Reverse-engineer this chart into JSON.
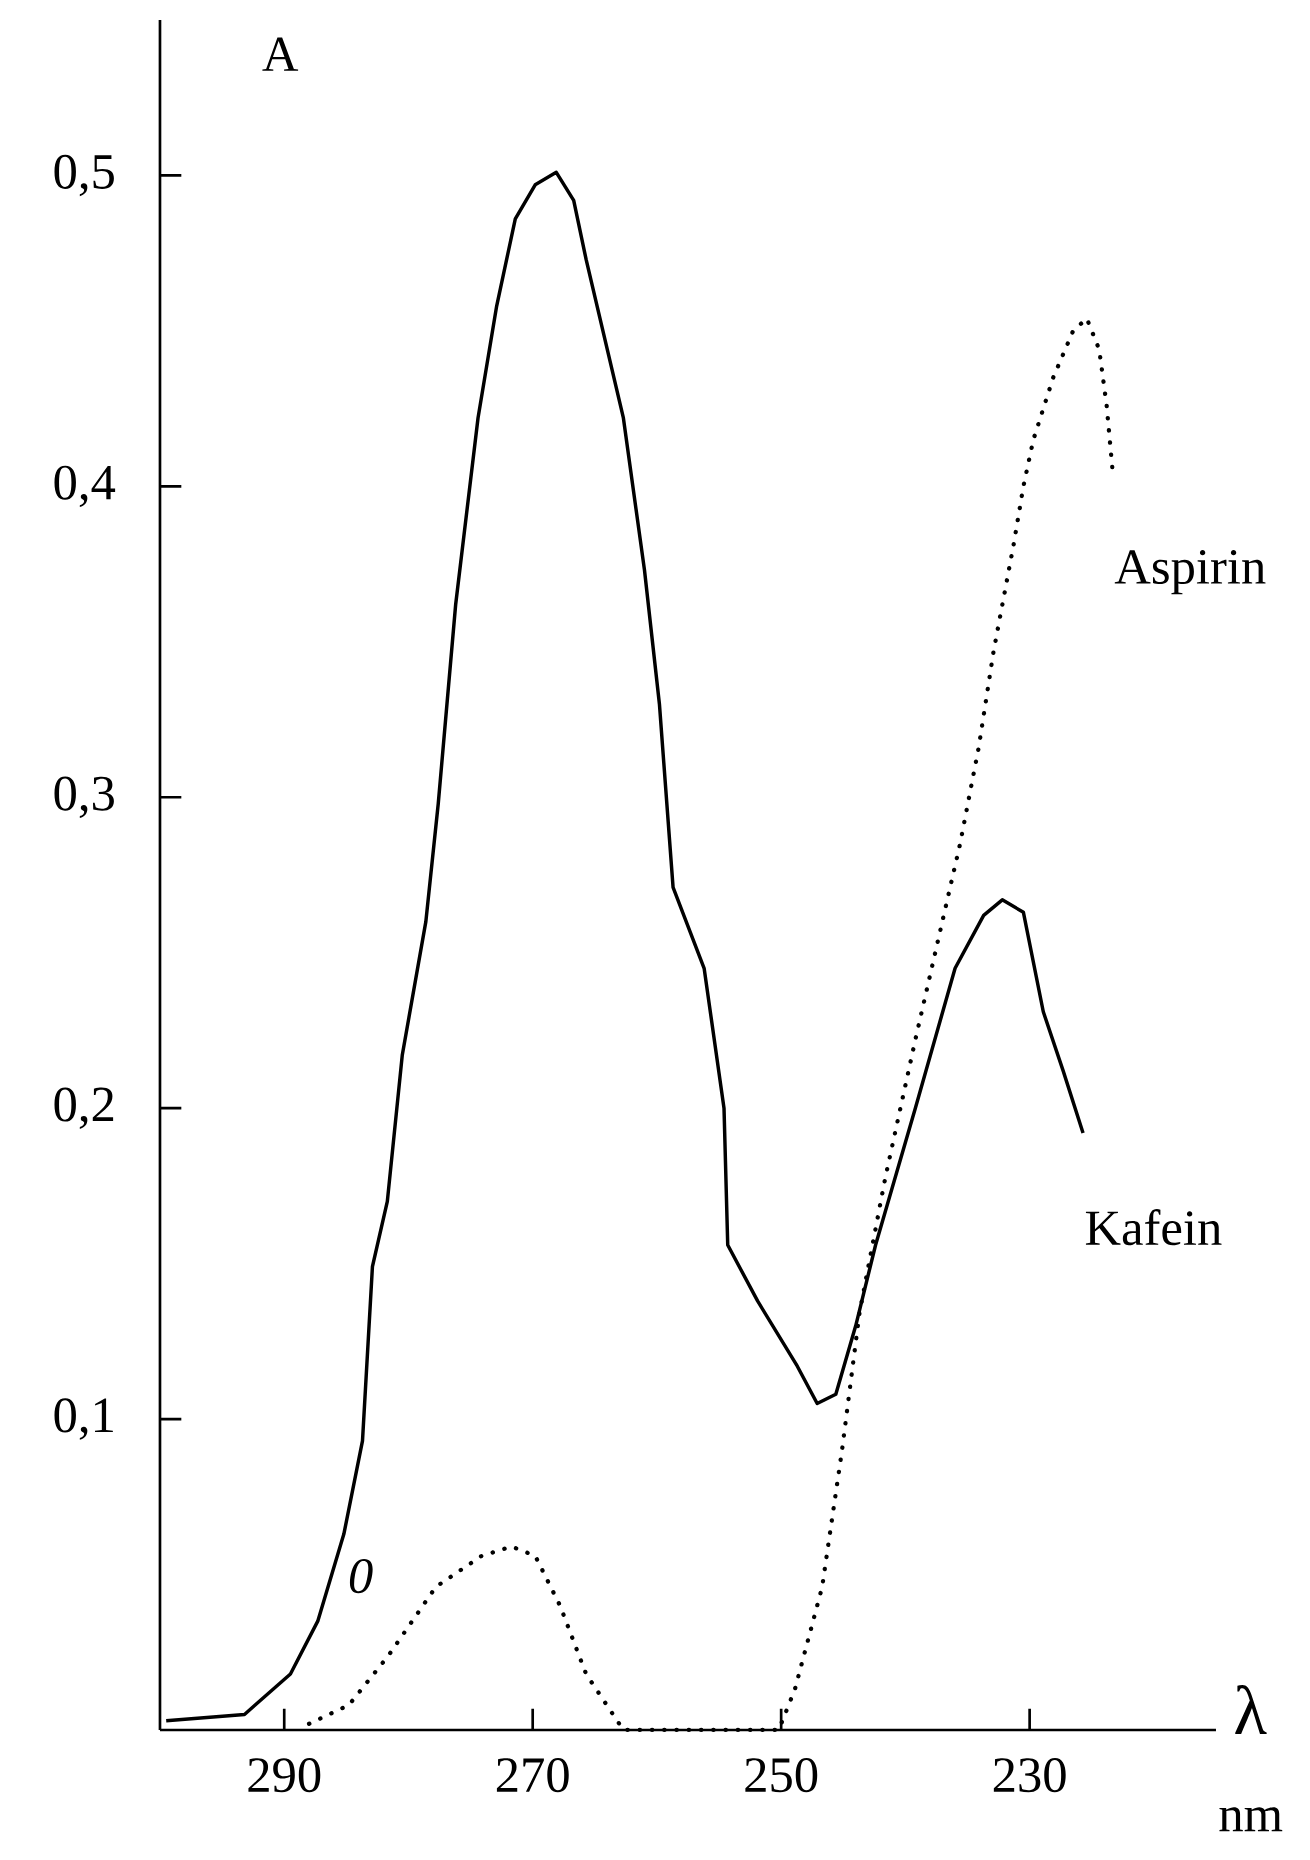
{
  "chart_data": {
    "type": "line",
    "xlabel": "λ",
    "ylabel": "A",
    "annotations": [
      "0",
      "nm"
    ],
    "xlim": [
      300,
      215
    ],
    "ylim": [
      0,
      0.55
    ],
    "xticks": [
      290,
      270,
      250,
      230
    ],
    "yticks": [
      {
        "value": 0.1,
        "label": "0,1"
      },
      {
        "value": 0.2,
        "label": "0,2"
      },
      {
        "value": 0.3,
        "label": "0,3"
      },
      {
        "value": 0.4,
        "label": "0,4"
      },
      {
        "value": 0.5,
        "label": "0,5"
      }
    ],
    "grid": false,
    "legend": false,
    "marker": "none",
    "series": [
      {
        "name": "Kafein",
        "color": "#000000",
        "line_style": "solid",
        "x": [
          299.5,
          293.2,
          289.5,
          287.3,
          285.2,
          283.7,
          282.9,
          281.7,
          280.5,
          278.6,
          277.6,
          276.2,
          274.4,
          272.9,
          271.4,
          269.8,
          268.1,
          266.7,
          265.7,
          262.7,
          261,
          259.8,
          258.7,
          256.2,
          254.6,
          254.3,
          251.9,
          248.7,
          247.1,
          245.6,
          244,
          242.4,
          239.2,
          236,
          233.7,
          232.2,
          230.5,
          228.9,
          227.3,
          225.7
        ],
        "values": [
          0.003,
          0.005,
          0.018,
          0.035,
          0.063,
          0.093,
          0.149,
          0.17,
          0.217,
          0.26,
          0.298,
          0.362,
          0.422,
          0.458,
          0.486,
          0.497,
          0.501,
          0.492,
          0.473,
          0.422,
          0.373,
          0.33,
          0.271,
          0.245,
          0.2,
          0.156,
          0.138,
          0.117,
          0.105,
          0.108,
          0.13,
          0.156,
          0.2,
          0.245,
          0.262,
          0.267,
          0.263,
          0.231,
          0.212,
          0.192
        ]
      },
      {
        "name": "Aspirin",
        "color": "#000000",
        "line_style": "dotted",
        "x": [
          288,
          284.8,
          281.6,
          277.8,
          274.1,
          271.7,
          269.8,
          267.8,
          265.7,
          262.7,
          250.2,
          248.9,
          246.7,
          245.1,
          243.7,
          241.6,
          239.2,
          235.6,
          234.1,
          232.9,
          232.1,
          231.3,
          230.5,
          229.7,
          228.1,
          226.5,
          225.4,
          224.4,
          223.8,
          223.3
        ],
        "values": [
          0.002,
          0.008,
          0.024,
          0.046,
          0.056,
          0.059,
          0.056,
          0.04,
          0.018,
          0,
          0,
          0.013,
          0.046,
          0.09,
          0.134,
          0.178,
          0.222,
          0.285,
          0.316,
          0.347,
          0.364,
          0.381,
          0.4,
          0.415,
          0.435,
          0.45,
          0.454,
          0.444,
          0.426,
          0.404
        ]
      }
    ]
  }
}
